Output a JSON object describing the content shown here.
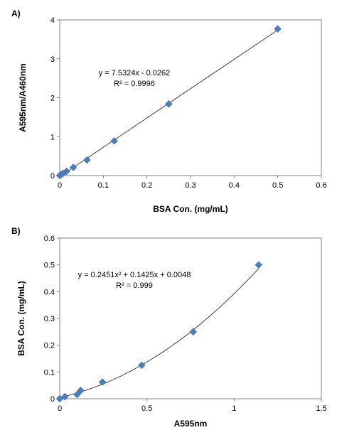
{
  "chart_data": [
    {
      "type": "scatter",
      "panel_label": "A)",
      "xlabel": "BSA Con. (mg/mL)",
      "ylabel": "A595nm/A460nm",
      "xlim": [
        0,
        0.6
      ],
      "ylim": [
        0,
        4
      ],
      "xticks": [
        "0",
        "0.1",
        "0.2",
        "0.3",
        "0.4",
        "0.5",
        "0.6"
      ],
      "yticks": [
        "0",
        "1",
        "2",
        "3",
        "4"
      ],
      "grid": false,
      "points": [
        {
          "x": 0,
          "y": 0.0
        },
        {
          "x": 0.0039,
          "y": 0.03
        },
        {
          "x": 0.0078,
          "y": 0.06
        },
        {
          "x": 0.0156,
          "y": 0.11
        },
        {
          "x": 0.03125,
          "y": 0.21
        },
        {
          "x": 0.0625,
          "y": 0.4
        },
        {
          "x": 0.125,
          "y": 0.89
        },
        {
          "x": 0.25,
          "y": 1.84
        },
        {
          "x": 0.5,
          "y": 3.77
        }
      ],
      "fit": {
        "kind": "linear",
        "slope": 7.5324,
        "intercept": -0.0262,
        "x_range": [
          0,
          0.5
        ]
      },
      "equation": "y = 7.5324x - 0.0262",
      "r_squared": "R² = 0.9996",
      "marker_color": "#4a7ebb"
    },
    {
      "type": "scatter",
      "panel_label": "B)",
      "xlabel": "A595nm",
      "ylabel": "BSA Con. (mg/mL)",
      "xlim": [
        0,
        1.5
      ],
      "ylim": [
        0,
        0.6
      ],
      "xticks": [
        "0",
        "0.5",
        "1",
        "1.5"
      ],
      "yticks": [
        "0",
        "0.1",
        "0.2",
        "0.3",
        "0.4",
        "0.5",
        "0.6"
      ],
      "grid": false,
      "points": [
        {
          "x": 0,
          "y": 0
        },
        {
          "x": 0.03,
          "y": 0.008
        },
        {
          "x": 0.1,
          "y": 0.016
        },
        {
          "x": 0.12,
          "y": 0.031
        },
        {
          "x": 0.245,
          "y": 0.0625
        },
        {
          "x": 0.47,
          "y": 0.125
        },
        {
          "x": 0.765,
          "y": 0.25
        },
        {
          "x": 1.14,
          "y": 0.5
        }
      ],
      "fit": {
        "kind": "quadratic",
        "a": 0.2451,
        "b": 0.1425,
        "c": 0.0048,
        "x_range": [
          0,
          1.14
        ]
      },
      "equation": "y = 0.2451x² + 0.1425x + 0.0048",
      "r_squared": "R² = 0.999",
      "marker_color": "#4a7ebb"
    }
  ]
}
